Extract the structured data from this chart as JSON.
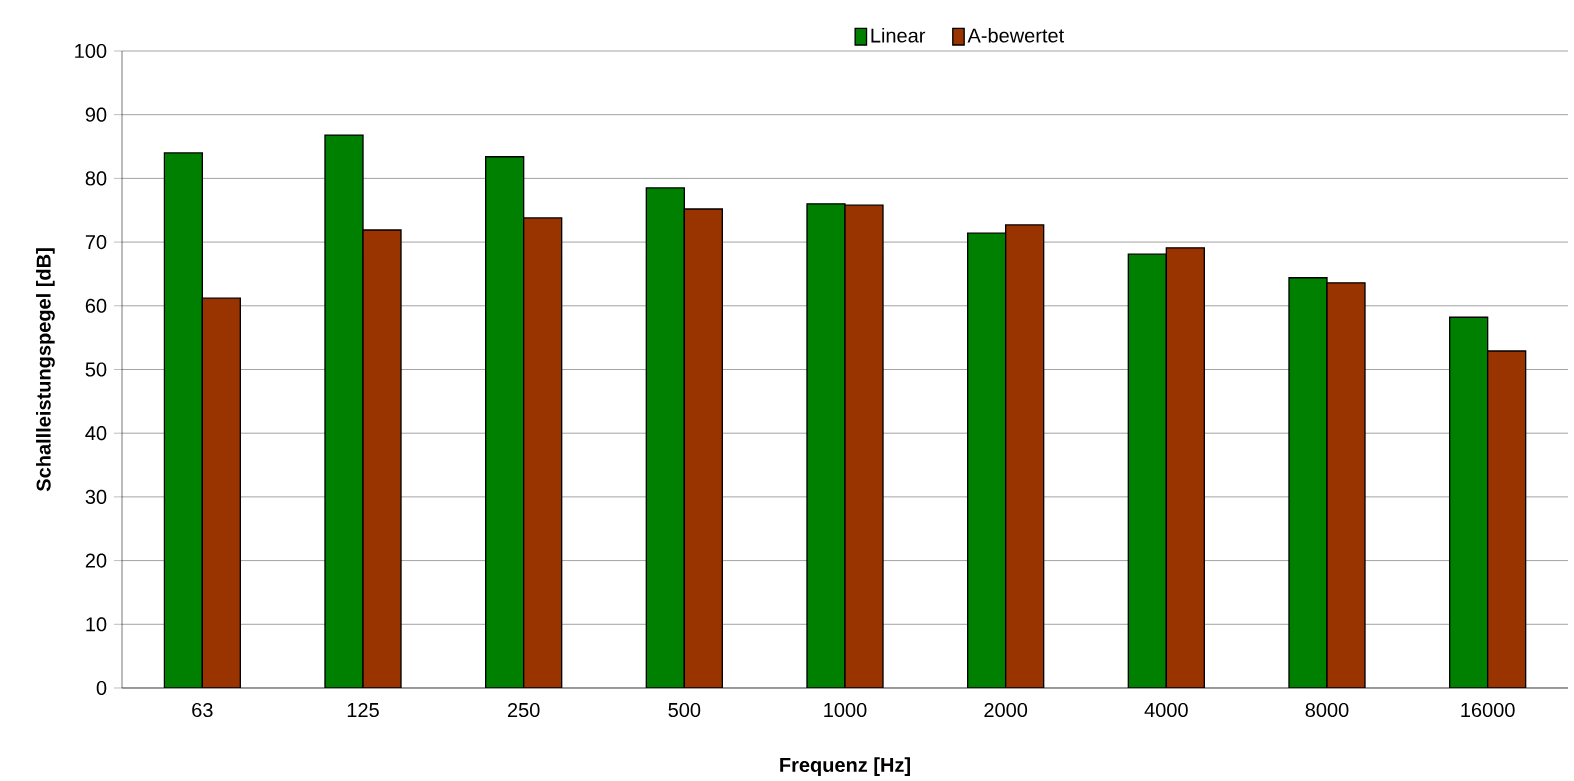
{
  "chart_data": {
    "type": "bar",
    "xlabel": "Frequenz  [Hz]",
    "ylabel": "Schallleistungspegel [dB]",
    "categories": [
      "63",
      "125",
      "250",
      "500",
      "1000",
      "2000",
      "4000",
      "8000",
      "16000"
    ],
    "series": [
      {
        "name": "Linear",
        "color": "#008000",
        "values": [
          84.0,
          86.8,
          83.4,
          78.5,
          76.0,
          71.4,
          68.1,
          64.4,
          58.2
        ]
      },
      {
        "name": "A-bewertet",
        "color": "#993300",
        "values": [
          61.2,
          71.9,
          73.8,
          75.2,
          75.8,
          72.7,
          69.1,
          63.6,
          52.9
        ]
      }
    ],
    "ylim": [
      0,
      100
    ],
    "yticks": [
      0,
      10,
      20,
      30,
      40,
      50,
      60,
      70,
      80,
      90,
      100
    ],
    "grid": "y",
    "legend": "top"
  }
}
